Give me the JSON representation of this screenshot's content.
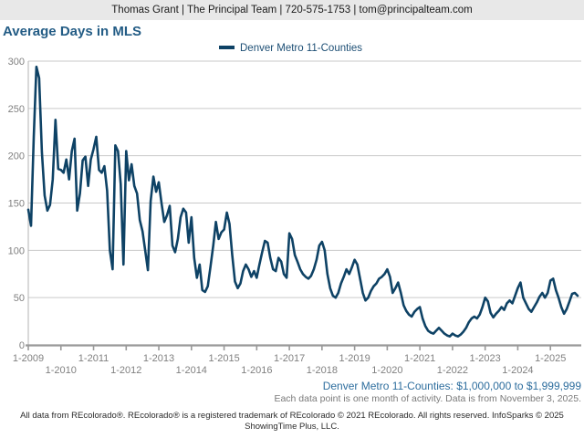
{
  "header": {
    "contact_text": "Thomas Grant | The Principal Team | 720-575-1753 | tom@principalteam.com"
  },
  "title": "Average Days in MLS",
  "legend": {
    "label": "Denver Metro 11-Counties"
  },
  "colors": {
    "line": "#0e4265",
    "title_text": "#235c85",
    "legend_text": "#1c4e74",
    "segment_text": "#2e6e9e",
    "note_text": "#7a7a7a",
    "axis_text": "#808080",
    "gridline": "#c9c9c9",
    "axis_line": "#999999",
    "header_bg": "#e8e8e8"
  },
  "chart_data": {
    "type": "line",
    "title": "Average Days in MLS",
    "x_start": "2009-01",
    "x_end": "2025-11",
    "x_interval": "monthly",
    "ylim": [
      0,
      300
    ],
    "y_ticks": [
      0,
      50,
      100,
      150,
      200,
      250,
      300
    ],
    "grid": true,
    "legend_position": "top-center",
    "x_tick_labels_row1": [
      "1-2009",
      "1-2011",
      "1-2013",
      "1-2015",
      "1-2017",
      "1-2019",
      "1-2021",
      "1-2023",
      "1-2025"
    ],
    "x_tick_labels_row2": [
      "1-2010",
      "1-2012",
      "1-2014",
      "1-2016",
      "1-2018",
      "1-2020",
      "1-2022",
      "1-2024"
    ],
    "series": [
      {
        "name": "Denver Metro 11-Counties",
        "color": "#0e4265",
        "values": [
          143,
          126,
          220,
          294,
          282,
          204,
          158,
          142,
          148,
          175,
          238,
          186,
          185,
          182,
          196,
          175,
          205,
          218,
          142,
          160,
          195,
          199,
          168,
          196,
          207,
          220,
          185,
          182,
          189,
          163,
          100,
          80,
          211,
          205,
          170,
          85,
          205,
          174,
          191,
          168,
          160,
          132,
          120,
          100,
          79,
          152,
          178,
          162,
          172,
          150,
          130,
          137,
          147,
          105,
          98,
          112,
          135,
          144,
          140,
          108,
          135,
          92,
          71,
          85,
          58,
          56,
          62,
          83,
          105,
          130,
          112,
          119,
          122,
          140,
          128,
          95,
          67,
          60,
          65,
          78,
          85,
          80,
          72,
          78,
          71,
          85,
          98,
          110,
          108,
          92,
          80,
          78,
          92,
          88,
          75,
          71,
          118,
          112,
          95,
          88,
          80,
          75,
          72,
          70,
          73,
          80,
          90,
          105,
          109,
          100,
          75,
          60,
          52,
          50,
          55,
          65,
          72,
          80,
          75,
          82,
          90,
          85,
          70,
          55,
          47,
          50,
          57,
          62,
          65,
          70,
          72,
          75,
          80,
          72,
          55,
          60,
          66,
          55,
          42,
          36,
          32,
          30,
          35,
          38,
          40,
          28,
          20,
          15,
          13,
          12,
          15,
          18,
          15,
          12,
          10,
          9,
          12,
          10,
          9,
          11,
          14,
          18,
          24,
          28,
          30,
          28,
          32,
          40,
          50,
          46,
          34,
          29,
          33,
          36,
          40,
          37,
          44,
          47,
          44,
          52,
          60,
          66,
          50,
          44,
          38,
          35,
          40,
          45,
          51,
          55,
          50,
          55,
          68,
          70,
          58,
          50,
          40,
          33,
          38,
          46,
          54,
          55,
          52
        ]
      }
    ]
  },
  "annotations": {
    "segment_line": "Denver Metro 11-Counties: $1,000,000 to $1,999,999",
    "note_line": "Each data point is one month of activity. Data is from November 3, 2025.",
    "footer_line1": "All data from REcolorado®. REcolorado® is a registered trademark of REcolorado © 2021 REcolorado. All rights reserved. InfoSparks © 2025",
    "footer_line2": "ShowingTime Plus, LLC."
  }
}
